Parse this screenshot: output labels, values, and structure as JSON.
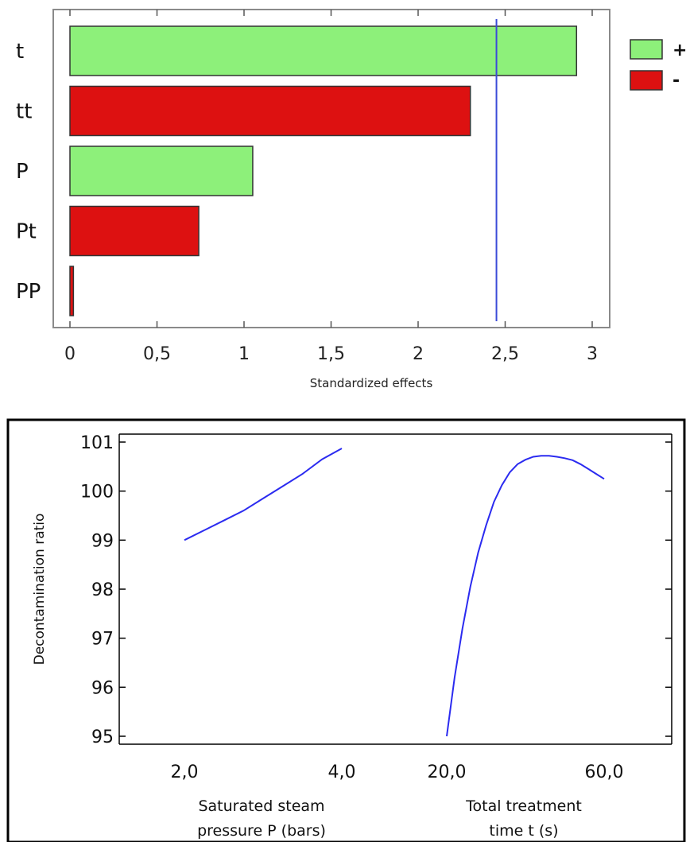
{
  "chart_data": [
    {
      "type": "bar",
      "orientation": "horizontal",
      "title": "",
      "xlabel": "Standardized effects",
      "ylabel": "",
      "categories": [
        "t",
        "tt",
        "P",
        "Pt",
        "PP"
      ],
      "values": [
        2.91,
        2.3,
        1.05,
        0.74,
        0.02
      ],
      "signs": [
        "+",
        "-",
        "+",
        "-",
        "-"
      ],
      "xlim": [
        0,
        3
      ],
      "xticks": [
        0,
        0.5,
        1,
        1.5,
        2,
        2.5,
        3
      ],
      "xtick_labels": [
        "0",
        "0,5",
        "1",
        "1,5",
        "2",
        "2,5",
        "3"
      ],
      "reference_line": 2.45,
      "reference_line_color": "#3a4ad8",
      "legend": {
        "placement": "right-top",
        "entries": [
          {
            "label": "+",
            "color": "#8df07a"
          },
          {
            "label": "-",
            "color": "#dd1111"
          }
        ]
      },
      "grid": false
    },
    {
      "type": "line",
      "title": "",
      "ylabel": "Decontamination ratio",
      "ylim": [
        95,
        101
      ],
      "yticks": [
        95,
        96,
        97,
        98,
        99,
        100,
        101
      ],
      "line_color": "#2b2bf0",
      "grid": false,
      "panels": [
        {
          "xlabel": "Saturated steam pressure P (bars)",
          "xlabel_lines": [
            "Saturated steam",
            "pressure P (bars)"
          ],
          "x_tick_labels": [
            "2,0",
            "4,0"
          ],
          "x": [
            2.0,
            2.25,
            2.5,
            2.75,
            3.0,
            3.25,
            3.5,
            3.75,
            4.0
          ],
          "y": [
            99.0,
            99.2,
            99.4,
            99.6,
            99.85,
            100.1,
            100.35,
            100.65,
            100.87
          ]
        },
        {
          "xlabel": "Total treatment time t (s)",
          "xlabel_lines": [
            "Total treatment",
            "time t (s)"
          ],
          "x_tick_labels": [
            "20,0",
            "60,0"
          ],
          "x": [
            20,
            22,
            24,
            26,
            28,
            30,
            32,
            34,
            36,
            38,
            40,
            42,
            44,
            46,
            48,
            50,
            52,
            54,
            56,
            58,
            60
          ],
          "y": [
            95.0,
            96.2,
            97.2,
            98.05,
            98.75,
            99.3,
            99.78,
            100.12,
            100.38,
            100.55,
            100.64,
            100.7,
            100.72,
            100.72,
            100.7,
            100.67,
            100.63,
            100.55,
            100.45,
            100.35,
            100.25
          ]
        }
      ]
    }
  ]
}
